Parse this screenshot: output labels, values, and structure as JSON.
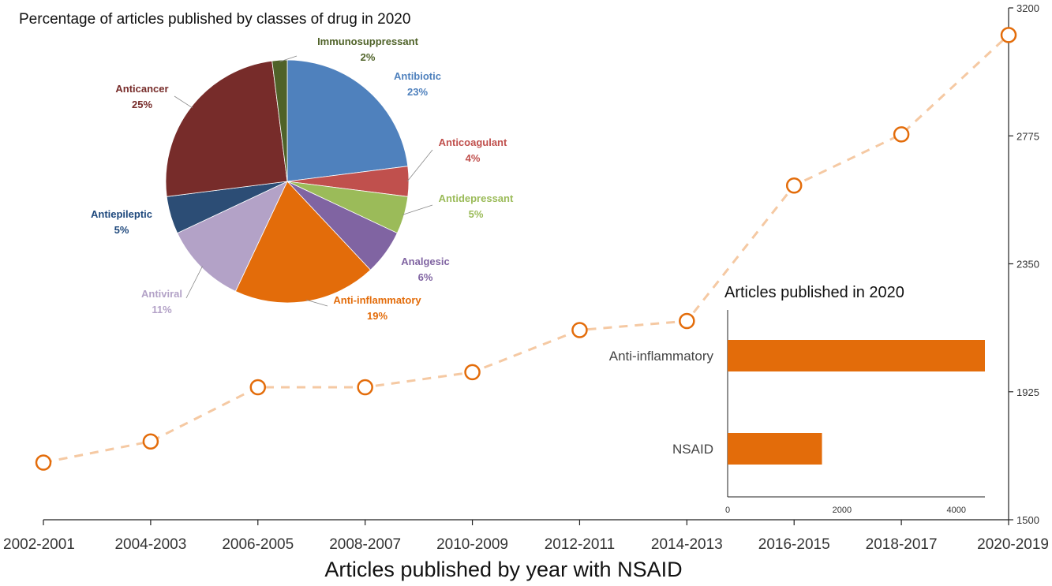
{
  "chart_data": [
    {
      "type": "line",
      "title": "",
      "xlabel": "Articles published by year with NSAID",
      "ylabel": "",
      "categories": [
        "2002-2001",
        "2004-2003",
        "2006-2005",
        "2008-2007",
        "2010-2009",
        "2012-2011",
        "2014-2013",
        "2016-2015",
        "2018-2017",
        "2020-2019"
      ],
      "series": [
        {
          "values": [
            1690,
            1760,
            1940,
            1940,
            1990,
            2130,
            2160,
            2610,
            2780,
            3110
          ]
        }
      ],
      "ylim": [
        1500,
        3200
      ],
      "yticks": [
        "1500",
        "1925",
        "2350",
        "2775",
        "3200"
      ],
      "y_axis_side": "right",
      "markers": "hollow circles",
      "line_style": "dashed",
      "grid": false,
      "colors": {
        "line": "#f5c9a3",
        "marker": "#e36c0a"
      }
    },
    {
      "type": "pie",
      "title": "Percentage of articles published by classes of drug in 2020",
      "slices": [
        {
          "label": "Antibiotic",
          "pct_label": "23%",
          "value": 23,
          "color": "#4f81bd",
          "text_color": "#4f81bd"
        },
        {
          "label": "Anticoagulant",
          "pct_label": "4%",
          "value": 4,
          "color": "#c0504d",
          "text_color": "#c0504d"
        },
        {
          "label": "Antidepressant",
          "pct_label": "5%",
          "value": 5,
          "color": "#9bbb59",
          "text_color": "#9bbb59"
        },
        {
          "label": "Analgesic",
          "pct_label": "6%",
          "value": 6,
          "color": "#8064a2",
          "text_color": "#8064a2"
        },
        {
          "label": "Anti-inflammatory",
          "pct_label": "19%",
          "value": 19,
          "color": "#e36c0a",
          "text_color": "#e36c0a"
        },
        {
          "label": "Antiviral",
          "pct_label": "11%",
          "value": 11,
          "color": "#b3a2c7",
          "text_color": "#b3a2c7"
        },
        {
          "label": "Antiepileptic",
          "pct_label": "5%",
          "value": 5,
          "color": "#2c4d75",
          "text_color": "#1f497d"
        },
        {
          "label": "Anticancer",
          "pct_label": "25%",
          "value": 25,
          "color": "#772c2a",
          "text_color": "#772c2a"
        },
        {
          "label": "Immunosuppressant",
          "pct_label": "2%",
          "value": 2,
          "color": "#4f6228",
          "text_color": "#4f6228"
        }
      ]
    },
    {
      "type": "bar",
      "orientation": "horizontal",
      "title": "Articles published in 2020",
      "categories": [
        "Anti-inflammatory",
        "NSAID"
      ],
      "values": [
        4500,
        1650
      ],
      "xlim": [
        0,
        4500
      ],
      "xticks": [
        "0",
        "2000",
        "4000"
      ],
      "colors": {
        "bar": "#e36c0a"
      }
    }
  ]
}
